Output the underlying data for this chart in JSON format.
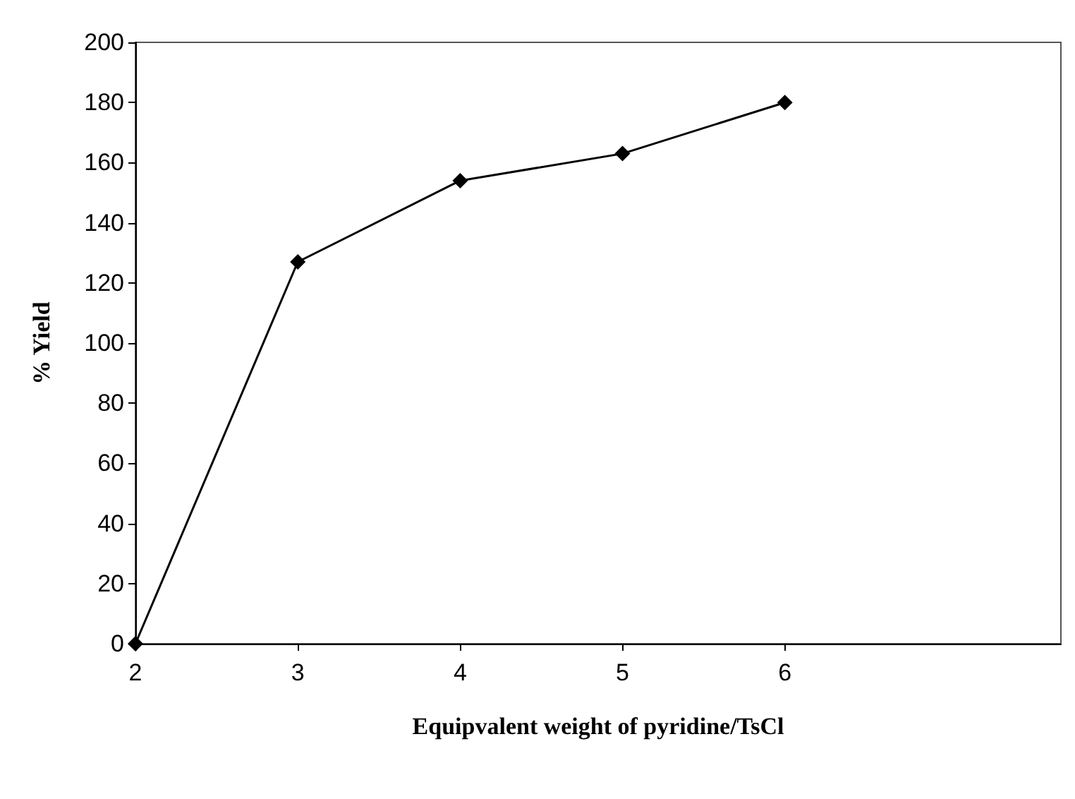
{
  "chart_data": {
    "type": "line",
    "xlabel": "Equipvalent weight of pyridine/TsCl",
    "ylabel": "% Yield",
    "x": [
      2,
      3,
      4,
      5,
      6
    ],
    "series": [
      {
        "color": "#000000",
        "values": [
          0,
          127,
          154,
          163,
          180
        ]
      }
    ],
    "xlim": [
      2,
      7.7
    ],
    "xticks": [
      2,
      3,
      4,
      5,
      6
    ],
    "ylim": [
      0,
      200
    ],
    "yticks": [
      0,
      20,
      40,
      60,
      80,
      100,
      120,
      140,
      160,
      180,
      200
    ],
    "marker": "diamond"
  }
}
